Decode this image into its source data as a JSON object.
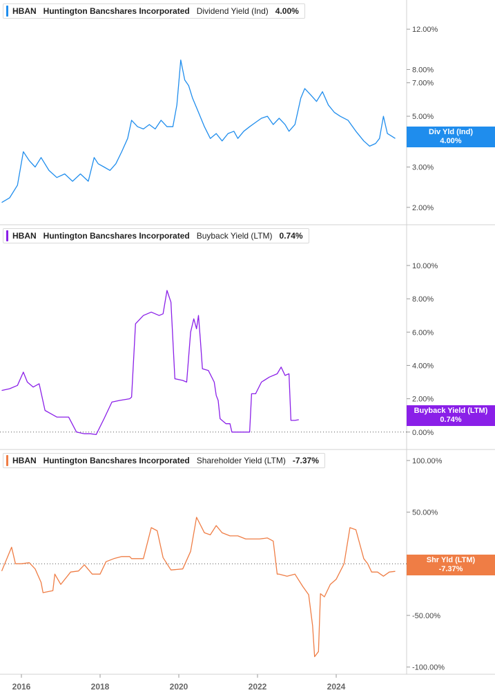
{
  "ticker": "HBAN",
  "company": "Huntington Bancshares Incorporated",
  "x_axis": {
    "ticks": [
      "2016",
      "2018",
      "2020",
      "2022",
      "2024"
    ]
  },
  "chart_data": [
    {
      "type": "line",
      "metric": "Dividend Yield (Ind)",
      "current_value": "4.00%",
      "badge_label": "Div Yld (Ind)",
      "color": "#1f8ded",
      "scale": "log",
      "y_ticks": [
        "12.00%",
        "8.00%",
        "7.00%",
        "5.00%",
        "3.00%",
        "2.00%"
      ],
      "y_tick_values": [
        12,
        8,
        7,
        5,
        3,
        2
      ],
      "ylim": [
        1.8,
        14
      ],
      "zero_line": false,
      "x": [
        2015.5,
        2015.7,
        2015.9,
        2016.05,
        2016.2,
        2016.35,
        2016.5,
        2016.7,
        2016.9,
        2017.1,
        2017.3,
        2017.5,
        2017.7,
        2017.85,
        2017.95,
        2018.1,
        2018.25,
        2018.4,
        2018.55,
        2018.7,
        2018.8,
        2018.95,
        2019.1,
        2019.25,
        2019.4,
        2019.55,
        2019.7,
        2019.85,
        2019.95,
        2020.05,
        2020.15,
        2020.25,
        2020.35,
        2020.5,
        2020.65,
        2020.8,
        2020.95,
        2021.1,
        2021.25,
        2021.4,
        2021.5,
        2021.65,
        2021.8,
        2021.95,
        2022.1,
        2022.25,
        2022.4,
        2022.55,
        2022.7,
        2022.8,
        2022.95,
        2023.1,
        2023.2,
        2023.35,
        2023.5,
        2023.65,
        2023.8,
        2023.95,
        2024.1,
        2024.3,
        2024.5,
        2024.7,
        2024.85,
        2025.0,
        2025.1,
        2025.2,
        2025.3,
        2025.4,
        2025.5
      ],
      "y": [
        2.1,
        2.2,
        2.5,
        3.5,
        3.2,
        3.0,
        3.3,
        2.9,
        2.7,
        2.8,
        2.6,
        2.8,
        2.6,
        3.3,
        3.1,
        3.0,
        2.9,
        3.1,
        3.5,
        4.0,
        4.8,
        4.5,
        4.4,
        4.6,
        4.4,
        4.8,
        4.5,
        4.5,
        5.6,
        8.8,
        7.2,
        6.8,
        6.0,
        5.2,
        4.5,
        4.0,
        4.2,
        3.9,
        4.2,
        4.3,
        4.0,
        4.3,
        4.5,
        4.7,
        4.9,
        5.0,
        4.6,
        4.9,
        4.6,
        4.3,
        4.6,
        6.0,
        6.6,
        6.2,
        5.8,
        6.4,
        5.6,
        5.2,
        5.0,
        4.8,
        4.3,
        3.9,
        3.7,
        3.8,
        4.0,
        5.0,
        4.2,
        4.1,
        4.0
      ]
    },
    {
      "type": "line",
      "metric": "Buyback Yield (LTM)",
      "current_value": "0.74%",
      "badge_label": "Buyback Yield (LTM)",
      "color": "#8a1fe8",
      "scale": "linear",
      "y_ticks": [
        "10.00%",
        "8.00%",
        "6.00%",
        "4.00%",
        "2.00%",
        "0.00%"
      ],
      "y_tick_values": [
        10,
        8,
        6,
        4,
        2,
        0
      ],
      "ylim": [
        -0.3,
        11.2
      ],
      "zero_line": true,
      "x": [
        2015.5,
        2015.7,
        2015.9,
        2016.05,
        2016.15,
        2016.3,
        2016.45,
        2016.6,
        2016.75,
        2016.9,
        2017.2,
        2017.4,
        2017.6,
        2017.75,
        2017.9,
        2018.1,
        2018.3,
        2018.5,
        2018.75,
        2018.8,
        2018.9,
        2019.1,
        2019.3,
        2019.5,
        2019.6,
        2019.7,
        2019.8,
        2019.9,
        2020.1,
        2020.2,
        2020.3,
        2020.38,
        2020.45,
        2020.5,
        2020.55,
        2020.6,
        2020.75,
        2020.9,
        2020.95,
        2021.0,
        2021.05,
        2021.2,
        2021.3,
        2021.35,
        2021.5,
        2021.7,
        2021.8,
        2021.85,
        2021.95,
        2022.1,
        2022.3,
        2022.5,
        2022.6,
        2022.7,
        2022.8,
        2022.85,
        2022.95,
        2023.05
      ],
      "y": [
        2.5,
        2.6,
        2.8,
        3.6,
        3.0,
        2.7,
        2.9,
        1.3,
        1.1,
        0.9,
        0.9,
        0.0,
        -0.1,
        -0.1,
        -0.15,
        0.8,
        1.8,
        1.9,
        2.0,
        2.1,
        6.5,
        7.0,
        7.2,
        7.0,
        7.1,
        8.5,
        7.8,
        3.2,
        3.1,
        3.0,
        6.0,
        6.8,
        6.2,
        7.0,
        5.5,
        3.8,
        3.7,
        3.0,
        2.2,
        1.9,
        0.8,
        0.5,
        0.5,
        0.0,
        0.0,
        0.0,
        0.0,
        2.3,
        2.3,
        3.0,
        3.3,
        3.5,
        3.9,
        3.4,
        3.5,
        0.7,
        0.7,
        0.74
      ]
    },
    {
      "type": "line",
      "metric": "Shareholder Yield (LTM)",
      "current_value": "-7.37%",
      "badge_label": "Shr Yld (LTM)",
      "color": "#ef7d45",
      "scale": "linear",
      "y_ticks": [
        "100.00%",
        "50.00%",
        "-50.00%",
        "-100.00%"
      ],
      "y_tick_values": [
        100,
        50,
        -50,
        -100
      ],
      "ylim": [
        -107,
        112
      ],
      "zero_line": true,
      "x": [
        2015.5,
        2015.75,
        2015.85,
        2016.0,
        2016.2,
        2016.35,
        2016.5,
        2016.55,
        2016.8,
        2016.85,
        2017.0,
        2017.25,
        2017.45,
        2017.6,
        2017.8,
        2018.0,
        2018.15,
        2018.35,
        2018.55,
        2018.75,
        2018.8,
        2019.1,
        2019.3,
        2019.45,
        2019.6,
        2019.8,
        2020.1,
        2020.3,
        2020.45,
        2020.65,
        2020.8,
        2020.95,
        2021.1,
        2021.3,
        2021.5,
        2021.7,
        2021.9,
        2022.05,
        2022.25,
        2022.4,
        2022.5,
        2022.55,
        2022.75,
        2022.95,
        2023.15,
        2023.3,
        2023.4,
        2023.45,
        2023.55,
        2023.6,
        2023.7,
        2023.85,
        2024.0,
        2024.2,
        2024.35,
        2024.5,
        2024.7,
        2024.8,
        2024.9,
        2025.05,
        2025.2,
        2025.35,
        2025.5
      ],
      "y": [
        -7,
        16,
        0,
        0,
        1,
        -5,
        -18,
        -28,
        -26,
        -10,
        -20,
        -8,
        -7,
        -1,
        -10,
        -10,
        2,
        5,
        7,
        7,
        5,
        5,
        35,
        32,
        6,
        -6,
        -5,
        12,
        45,
        30,
        28,
        37,
        30,
        27,
        27,
        24,
        24,
        24,
        25,
        22,
        -10,
        -10,
        -12,
        -10,
        -22,
        -30,
        -60,
        -90,
        -85,
        -29,
        -32,
        -20,
        -15,
        0,
        35,
        33,
        5,
        0,
        -8,
        -8,
        -12,
        -8,
        -7.37
      ]
    }
  ]
}
